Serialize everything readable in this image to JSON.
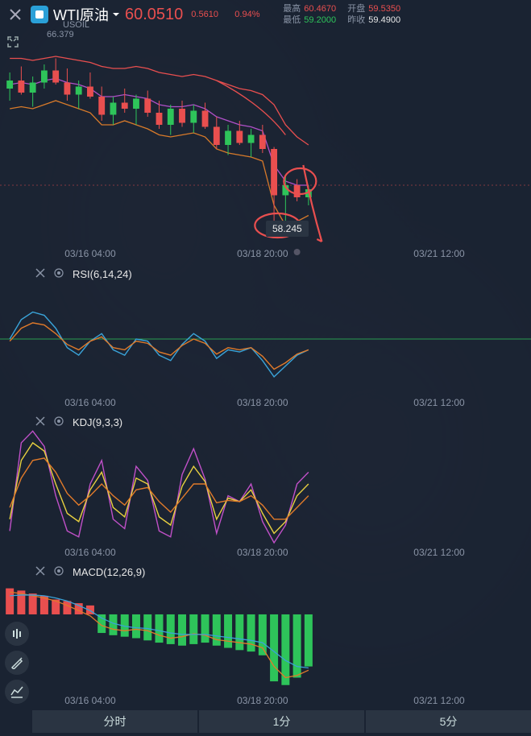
{
  "header": {
    "symbol_name": "WTI原油",
    "price": "60.0510",
    "change": "0.5610",
    "change_pct": "0.94%",
    "high_label": "最高",
    "high": "60.4670",
    "open_label": "开盘",
    "open": "59.5350",
    "low_label": "最低",
    "low": "59.2000",
    "prev_label": "昨收",
    "prev": "59.4900",
    "sub_symbol": "USOIL",
    "last_line_price": "66.379"
  },
  "colors": {
    "bg": "#1a2332",
    "red": "#e94f4f",
    "green": "#2ec45a",
    "grid": "#2a3442",
    "ma1": "#d87a2a",
    "ma2": "#b050c8",
    "ma3": "#e94f4f",
    "rsi1": "#3aa3d8",
    "rsi2": "#e07a2a",
    "rsi_mid": "#2ec45a",
    "kdj_k": "#e8d040",
    "kdj_d": "#e07a2a",
    "kdj_j": "#c050c8",
    "macd_line": "#e07a2a",
    "macd_signal": "#3aa3d8",
    "annotation": "#e94f4f"
  },
  "timeframes": [
    "分时",
    "1分",
    "5分"
  ],
  "time_ticks": [
    "03/16 04:00",
    "03/18 20:00",
    "03/21 12:00"
  ],
  "annotation_price": "58.245",
  "panels": {
    "rsi": {
      "title": "RSI(6,14,24)"
    },
    "kdj": {
      "title": "KDJ(9,3,3)"
    },
    "macd": {
      "title": "MACD(12,26,9)"
    }
  },
  "main_chart": {
    "y_min": 57,
    "y_max": 68,
    "candles": [
      {
        "x": 0,
        "o": 64.8,
        "h": 65.6,
        "l": 64.2,
        "c": 65.2,
        "up": true
      },
      {
        "x": 1,
        "o": 65.2,
        "h": 65.9,
        "l": 64.5,
        "c": 64.6,
        "up": false
      },
      {
        "x": 2,
        "o": 64.6,
        "h": 65.4,
        "l": 63.9,
        "c": 65.1,
        "up": true
      },
      {
        "x": 3,
        "o": 65.1,
        "h": 66.0,
        "l": 64.8,
        "c": 65.7,
        "up": true
      },
      {
        "x": 4,
        "o": 65.7,
        "h": 66.3,
        "l": 65.0,
        "c": 65.1,
        "up": false
      },
      {
        "x": 5,
        "o": 65.1,
        "h": 65.8,
        "l": 64.2,
        "c": 64.5,
        "up": false
      },
      {
        "x": 6,
        "o": 64.5,
        "h": 65.2,
        "l": 63.8,
        "c": 64.9,
        "up": true
      },
      {
        "x": 7,
        "o": 64.9,
        "h": 65.6,
        "l": 64.3,
        "c": 64.4,
        "up": false
      },
      {
        "x": 8,
        "o": 64.4,
        "h": 64.9,
        "l": 63.2,
        "c": 63.5,
        "up": false
      },
      {
        "x": 9,
        "o": 63.5,
        "h": 64.4,
        "l": 63.0,
        "c": 64.1,
        "up": true
      },
      {
        "x": 10,
        "o": 64.1,
        "h": 64.8,
        "l": 63.6,
        "c": 63.8,
        "up": false
      },
      {
        "x": 11,
        "o": 63.8,
        "h": 64.5,
        "l": 63.0,
        "c": 64.3,
        "up": true
      },
      {
        "x": 12,
        "o": 64.3,
        "h": 64.7,
        "l": 63.4,
        "c": 63.6,
        "up": false
      },
      {
        "x": 13,
        "o": 63.6,
        "h": 64.2,
        "l": 62.8,
        "c": 63.0,
        "up": false
      },
      {
        "x": 14,
        "o": 63.0,
        "h": 64.0,
        "l": 62.5,
        "c": 63.8,
        "up": true
      },
      {
        "x": 15,
        "o": 63.8,
        "h": 64.2,
        "l": 62.9,
        "c": 63.1,
        "up": false
      },
      {
        "x": 16,
        "o": 63.1,
        "h": 64.0,
        "l": 62.6,
        "c": 63.7,
        "up": true
      },
      {
        "x": 17,
        "o": 63.7,
        "h": 64.1,
        "l": 62.8,
        "c": 62.9,
        "up": false
      },
      {
        "x": 18,
        "o": 62.9,
        "h": 63.4,
        "l": 61.8,
        "c": 62.0,
        "up": false
      },
      {
        "x": 19,
        "o": 62.0,
        "h": 63.0,
        "l": 61.5,
        "c": 62.7,
        "up": true
      },
      {
        "x": 20,
        "o": 62.7,
        "h": 63.2,
        "l": 62.0,
        "c": 62.1,
        "up": false
      },
      {
        "x": 21,
        "o": 62.1,
        "h": 62.8,
        "l": 61.4,
        "c": 62.5,
        "up": true
      },
      {
        "x": 22,
        "o": 62.5,
        "h": 63.0,
        "l": 61.6,
        "c": 61.8,
        "up": false
      },
      {
        "x": 23,
        "o": 61.8,
        "h": 61.9,
        "l": 57.5,
        "c": 59.5,
        "up": false
      },
      {
        "x": 24,
        "o": 59.5,
        "h": 60.5,
        "l": 58.2,
        "c": 60.0,
        "up": true
      },
      {
        "x": 25,
        "o": 60.0,
        "h": 60.3,
        "l": 59.2,
        "c": 59.4,
        "up": false
      },
      {
        "x": 26,
        "o": 59.4,
        "h": 60.0,
        "l": 59.0,
        "c": 59.8,
        "up": true
      }
    ],
    "ma_upper": [
      66.3,
      66.3,
      66.2,
      66.3,
      66.4,
      66.3,
      66.2,
      66.1,
      65.9,
      65.8,
      65.8,
      65.9,
      65.8,
      65.6,
      65.5,
      65.4,
      65.5,
      65.4,
      65.2,
      65.0,
      64.8,
      64.7,
      64.5,
      64.0,
      63.0,
      62.4,
      62.0
    ],
    "ma_lower": [
      63.8,
      63.9,
      63.8,
      64.0,
      64.2,
      64.0,
      63.8,
      63.6,
      63.0,
      63.0,
      63.2,
      63.0,
      62.8,
      62.5,
      62.4,
      62.5,
      62.6,
      62.4,
      61.8,
      61.6,
      61.5,
      61.4,
      61.2,
      59.0,
      58.0,
      58.2,
      58.5
    ],
    "ma_mid": [
      65.0,
      65.1,
      65.0,
      65.2,
      65.3,
      65.1,
      65.0,
      64.8,
      64.4,
      64.4,
      64.5,
      64.4,
      64.3,
      64.0,
      63.9,
      63.9,
      64.0,
      63.8,
      63.4,
      63.2,
      63.0,
      62.9,
      62.7,
      61.0,
      60.2,
      60.0,
      60.0
    ]
  },
  "rsi": {
    "line1": [
      50,
      68,
      75,
      72,
      60,
      42,
      35,
      48,
      55,
      40,
      35,
      50,
      48,
      35,
      30,
      45,
      55,
      48,
      32,
      40,
      38,
      42,
      30,
      15,
      25,
      35,
      40
    ],
    "line2": [
      48,
      60,
      65,
      63,
      55,
      45,
      40,
      48,
      52,
      42,
      40,
      48,
      46,
      38,
      35,
      44,
      50,
      46,
      36,
      42,
      40,
      42,
      34,
      22,
      28,
      36,
      40
    ]
  },
  "kdj": {
    "k": [
      20,
      70,
      85,
      78,
      50,
      25,
      18,
      45,
      60,
      30,
      22,
      55,
      50,
      22,
      15,
      48,
      65,
      52,
      20,
      38,
      35,
      45,
      25,
      8,
      18,
      40,
      50
    ],
    "d": [
      30,
      55,
      70,
      72,
      60,
      42,
      32,
      40,
      50,
      40,
      32,
      45,
      47,
      35,
      26,
      38,
      50,
      50,
      34,
      36,
      35,
      40,
      32,
      20,
      20,
      30,
      40
    ],
    "j": [
      10,
      85,
      95,
      82,
      40,
      10,
      5,
      50,
      70,
      20,
      12,
      65,
      53,
      10,
      5,
      58,
      80,
      54,
      8,
      40,
      35,
      50,
      18,
      0,
      15,
      50,
      60
    ]
  },
  "macd": {
    "hist": [
      0.35,
      0.32,
      0.28,
      0.25,
      0.2,
      0.18,
      0.15,
      0.12,
      -0.25,
      -0.28,
      -0.3,
      -0.32,
      -0.35,
      -0.38,
      -0.4,
      -0.42,
      -0.4,
      -0.38,
      -0.42,
      -0.45,
      -0.48,
      -0.5,
      -0.55,
      -0.9,
      -0.95,
      -0.85,
      -0.7
    ],
    "line": [
      0.3,
      0.28,
      0.25,
      0.22,
      0.18,
      0.12,
      0.05,
      -0.02,
      -0.15,
      -0.2,
      -0.22,
      -0.2,
      -0.22,
      -0.28,
      -0.32,
      -0.3,
      -0.26,
      -0.28,
      -0.34,
      -0.36,
      -0.38,
      -0.4,
      -0.45,
      -0.7,
      -0.85,
      -0.82,
      -0.75
    ],
    "signal": [
      0.25,
      0.26,
      0.26,
      0.25,
      0.22,
      0.18,
      0.12,
      0.05,
      -0.05,
      -0.12,
      -0.16,
      -0.18,
      -0.19,
      -0.22,
      -0.25,
      -0.27,
      -0.27,
      -0.27,
      -0.29,
      -0.31,
      -0.33,
      -0.35,
      -0.38,
      -0.5,
      -0.62,
      -0.7,
      -0.72
    ]
  }
}
